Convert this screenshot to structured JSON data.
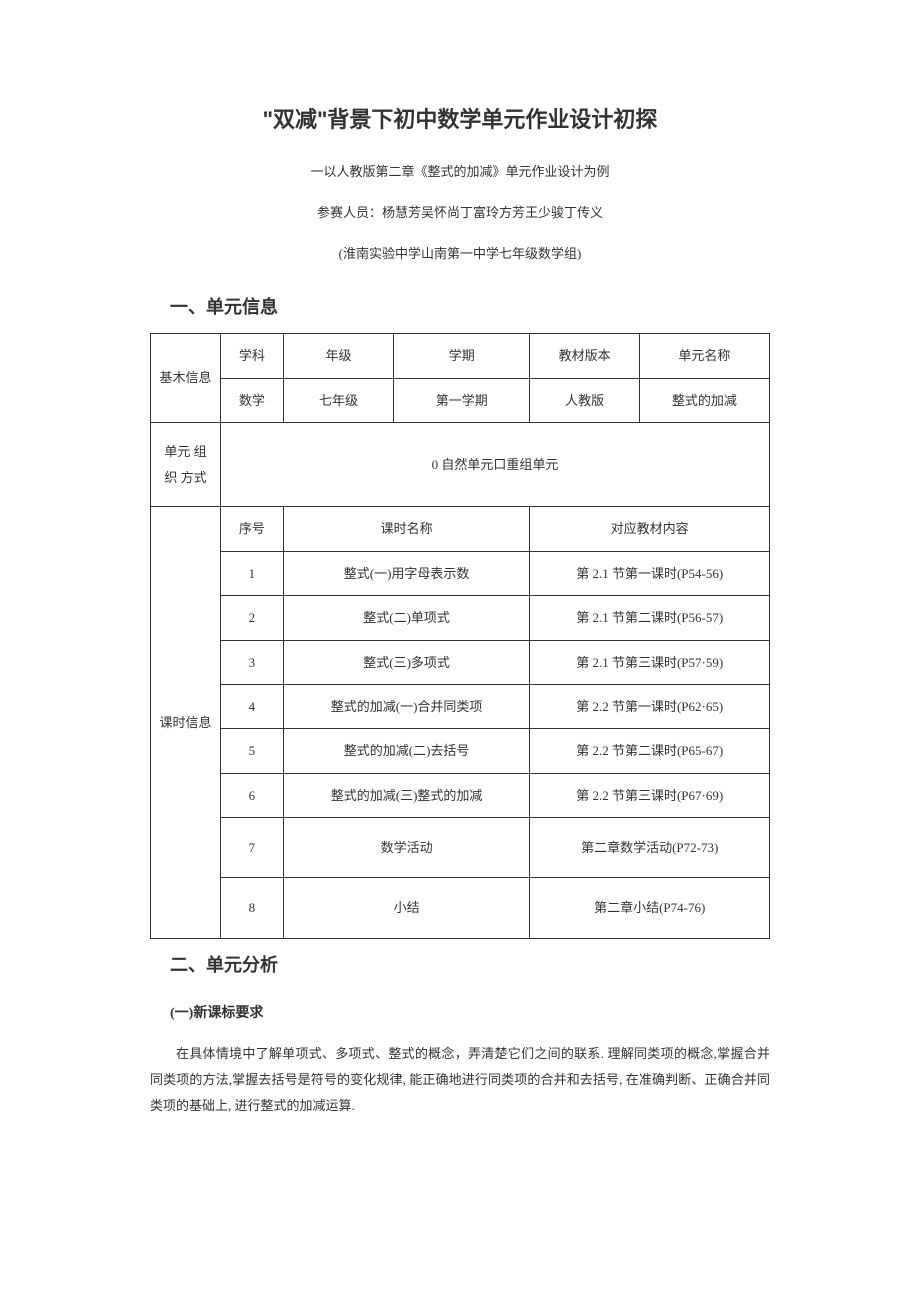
{
  "title": "\"双减\"背景下初中数学单元作业设计初探",
  "subtitle": "一以人教版第二章《整式的加减》单元作业设计为例",
  "authors": "参赛人员：杨慧芳吴怀尚丁富玲方芳王少骏丁传义",
  "affiliation": "(淮南实验中学山南第一中学七年级数学组)",
  "section1_heading": "一、单元信息",
  "basic_info": {
    "row_label": "基木信息",
    "headers": [
      "学科",
      "年级",
      "学期",
      "教材版本",
      "单元名称"
    ],
    "values": [
      "数学",
      "七年级",
      "第一学期",
      "人教版",
      "整式的加减"
    ]
  },
  "unit_org": {
    "label": "单元\n组织\n方式",
    "value": "0 自然单元口重组单元"
  },
  "lesson_info": {
    "row_label": "课时信息",
    "headers": [
      "序号",
      "课时名称",
      "对应教材内容"
    ],
    "rows": [
      {
        "num": "1",
        "name": "整式(一)用字母表示数",
        "content": "第 2.1 节第一课时(P54-56)"
      },
      {
        "num": "2",
        "name": "整式(二)单项式",
        "content": "第 2.1 节第二课时(P56-57)"
      },
      {
        "num": "3",
        "name": "整式(三)多项式",
        "content": "第 2.1 节第三课时(P57·59)"
      },
      {
        "num": "4",
        "name": "整式的加减(一)合并同类项",
        "content": "第 2.2 节第一课时(P62·65)"
      },
      {
        "num": "5",
        "name": "整式的加减(二)去括号",
        "content": "第 2.2 节第二课时(P65-67)"
      },
      {
        "num": "6",
        "name": "整式的加减(三)整式的加减",
        "content": "第 2.2 节第三课时(P67·69)"
      },
      {
        "num": "7",
        "name": "数学活动",
        "content": "第二章数学活动(P72-73)"
      },
      {
        "num": "8",
        "name": "小结",
        "content": "第二章小结(P74-76)"
      }
    ]
  },
  "section2_heading": "二、单元分析",
  "subsection_heading": "(一)新课标要求",
  "paragraph": "在具体情境中了解单项式、多项式、整式的概念，弄清楚它们之间的联系. 理解同类项的概念,掌握合并同类项的方法,掌握去括号是符号的变化规律, 能正确地进行同类项的合并和去括号, 在准确判断、正确合并同类项的基础上, 进行整式的加减运算."
}
